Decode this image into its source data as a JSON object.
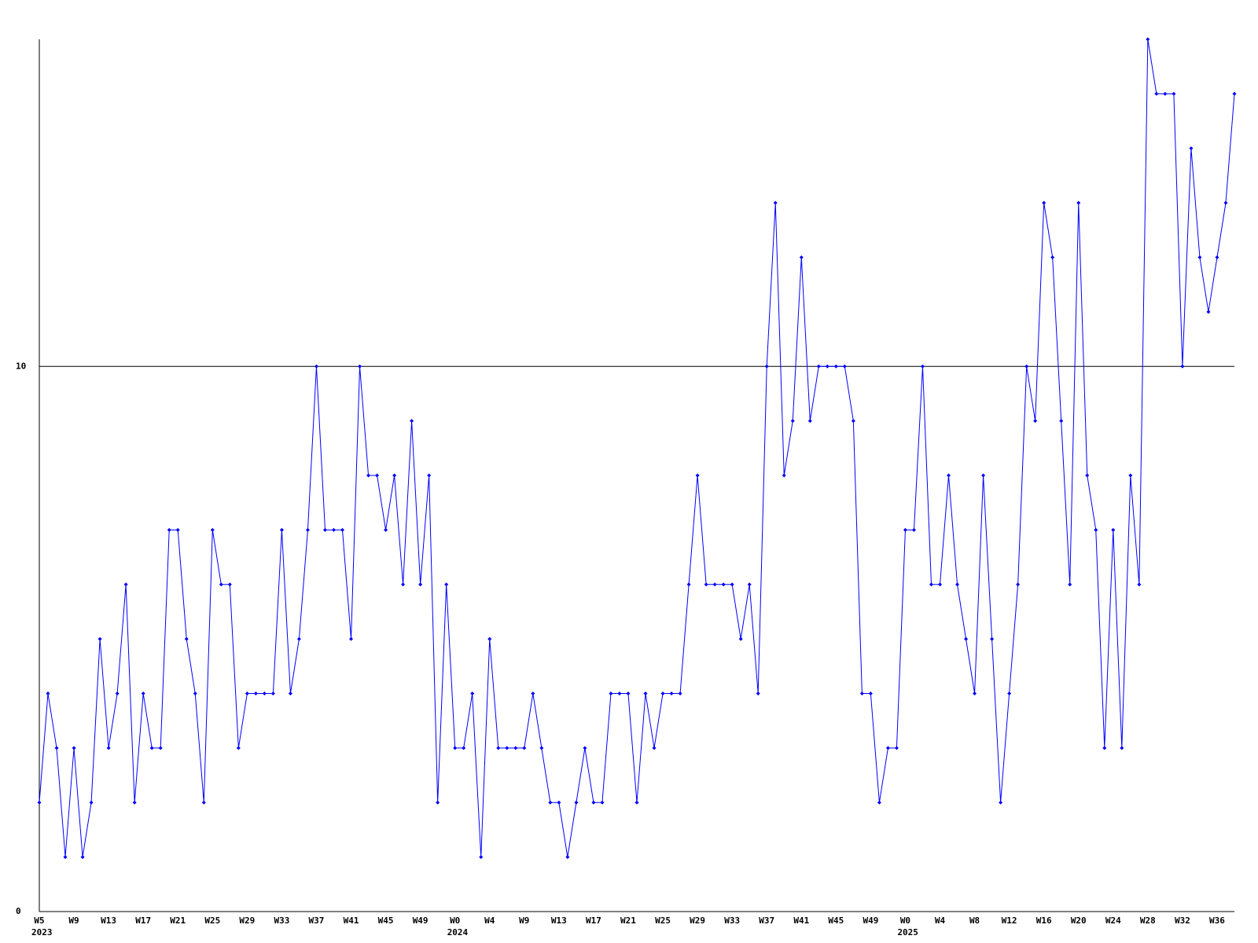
{
  "chart_data": {
    "type": "line",
    "color": "#0000ff",
    "categories": [
      "W5",
      null,
      null,
      null,
      "W9",
      null,
      null,
      null,
      "W13",
      null,
      null,
      null,
      "W17",
      null,
      null,
      null,
      "W21",
      null,
      null,
      null,
      "W25",
      null,
      null,
      null,
      "W29",
      null,
      null,
      null,
      "W33",
      null,
      null,
      null,
      "W37",
      null,
      null,
      null,
      "W41",
      null,
      null,
      null,
      "W45",
      null,
      null,
      null,
      "W49",
      null,
      null,
      null,
      "W0",
      null,
      null,
      null,
      "W4",
      null,
      null,
      null,
      "W9",
      null,
      null,
      null,
      "W13",
      null,
      null,
      null,
      "W17",
      null,
      null,
      null,
      "W21",
      null,
      null,
      null,
      "W25",
      null,
      null,
      null,
      "W29",
      null,
      null,
      null,
      "W33",
      null,
      null,
      null,
      "W37",
      null,
      null,
      null,
      "W41",
      null,
      null,
      null,
      "W45",
      null,
      null,
      null,
      "W49",
      null,
      null,
      null,
      "W0",
      null,
      null,
      null,
      "W4",
      null,
      null,
      null,
      "W8",
      null,
      null,
      null,
      "W12",
      null,
      null,
      null,
      "W16",
      null,
      null,
      null,
      "W20",
      null,
      null,
      null,
      "W24",
      null,
      null,
      null,
      "W28",
      null,
      null,
      null,
      "W32",
      null,
      null,
      null,
      "W36",
      null,
      null
    ],
    "category_years": [
      "2023",
      null,
      null,
      null,
      null,
      null,
      null,
      null,
      null,
      null,
      null,
      null,
      null,
      null,
      null,
      null,
      null,
      null,
      null,
      null,
      null,
      null,
      null,
      null,
      null,
      null,
      null,
      null,
      null,
      null,
      null,
      null,
      null,
      null,
      null,
      null,
      null,
      null,
      null,
      null,
      null,
      null,
      null,
      null,
      null,
      null,
      null,
      null,
      "2024",
      null,
      null,
      null,
      null,
      null,
      null,
      null,
      null,
      null,
      null,
      null,
      null,
      null,
      null,
      null,
      null,
      null,
      null,
      null,
      null,
      null,
      null,
      null,
      null,
      null,
      null,
      null,
      null,
      null,
      null,
      null,
      null,
      null,
      null,
      null,
      null,
      null,
      null,
      null,
      null,
      null,
      null,
      null,
      null,
      null,
      null,
      null,
      null,
      null,
      null,
      null,
      "2025",
      null,
      null,
      null,
      null,
      null,
      null,
      null,
      null,
      null,
      null,
      null,
      null,
      null,
      null,
      null,
      null,
      null,
      null,
      null,
      null,
      null,
      null,
      null,
      null,
      null,
      null,
      null,
      null,
      null,
      null,
      null,
      null,
      null,
      null,
      null,
      null,
      null,
      null
    ],
    "values": [
      2,
      4,
      3,
      1,
      3,
      1,
      2,
      5,
      3,
      4,
      6,
      2,
      4,
      3,
      3,
      7,
      7,
      5,
      4,
      2,
      7,
      6,
      6,
      3,
      4,
      4,
      4,
      4,
      7,
      4,
      5,
      7,
      10,
      7,
      7,
      7,
      5,
      10,
      8,
      8,
      7,
      8,
      6,
      9,
      6,
      8,
      2,
      6,
      3,
      3,
      4,
      1,
      5,
      3,
      3,
      3,
      3,
      4,
      3,
      2,
      2,
      1,
      2,
      3,
      2,
      2,
      4,
      4,
      4,
      2,
      4,
      3,
      4,
      4,
      4,
      6,
      8,
      6,
      6,
      6,
      6,
      5,
      6,
      4,
      10,
      13,
      8,
      9,
      12,
      9,
      10,
      10,
      10,
      10,
      9,
      4,
      4,
      2,
      3,
      3,
      7,
      7,
      10,
      6,
      6,
      8,
      6,
      5,
      4,
      8,
      5,
      2,
      4,
      6,
      10,
      9,
      13,
      12,
      9,
      6,
      13,
      8,
      7,
      3,
      7,
      3,
      8,
      6,
      16,
      15,
      15,
      15,
      10,
      14,
      12,
      11,
      12,
      13,
      15
    ],
    "ylim": [
      0,
      16
    ],
    "yticks": [
      0,
      10
    ],
    "grid": true
  }
}
